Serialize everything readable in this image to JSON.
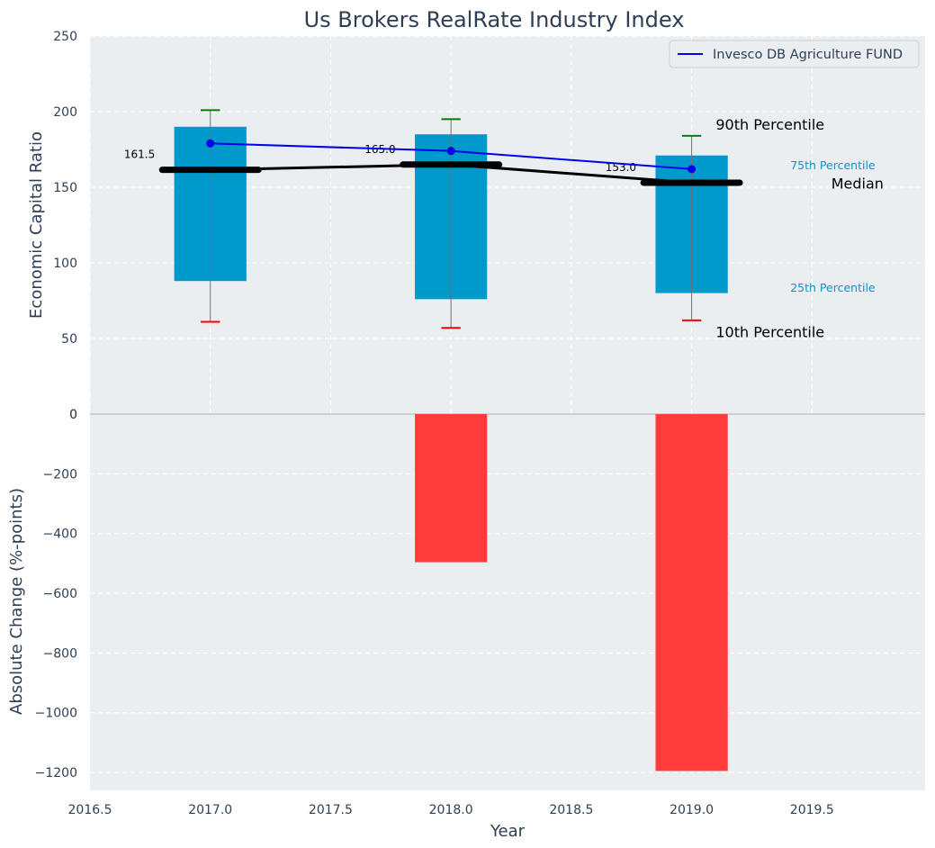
{
  "title": "Us Brokers RealRate Industry Index",
  "chart_data": [
    {
      "type": "box",
      "panel": "top",
      "ylabel": "Economic Capital Ratio",
      "ylim": [
        0,
        250
      ],
      "yticks": [
        "0",
        "50",
        "100",
        "150",
        "200",
        "250"
      ],
      "years": [
        2017,
        2018,
        2019
      ],
      "p10": [
        61,
        57,
        62
      ],
      "p25": [
        88,
        76,
        80
      ],
      "median": [
        161.5,
        165.0,
        153.0
      ],
      "p75": [
        190,
        185,
        171
      ],
      "p90": [
        201,
        195,
        184
      ],
      "median_labels": [
        "161.5",
        "165.0",
        "153.0"
      ],
      "fund_series": {
        "name": "Invesco DB Agriculture FUND",
        "values": [
          179,
          174,
          162
        ]
      },
      "legend_loc": "upper right",
      "grid": true,
      "annotations": {
        "p90": "90th Percentile",
        "p75": "75th Percentile",
        "median": "Median",
        "p25": "25th Percentile",
        "p10": "10th Percentile"
      },
      "colors": {
        "box": "#0099cc",
        "fund": "#0000ee",
        "median": "#000000",
        "p90_cap": "#008000",
        "p10_cap": "#ff0000",
        "p_label": "#0099cc",
        "background": "#eaeef0"
      }
    },
    {
      "type": "bar",
      "panel": "bottom",
      "ylabel": "Absolute Change (%-points)",
      "xlabel": "Year",
      "ylim": [
        -1260,
        0
      ],
      "yticks": [
        "0",
        "−200",
        "−400",
        "−600",
        "−800",
        "−1000",
        "−1200"
      ],
      "xlim": [
        2016.5,
        2019.97
      ],
      "xticks": [
        "2016.5",
        "2017.0",
        "2017.5",
        "2018.0",
        "2018.5",
        "2019.0",
        "2019.5"
      ],
      "x": [
        2017,
        2018,
        2019
      ],
      "values": [
        0,
        -496,
        -1195
      ],
      "bar_color": "#ff3b3b"
    }
  ]
}
